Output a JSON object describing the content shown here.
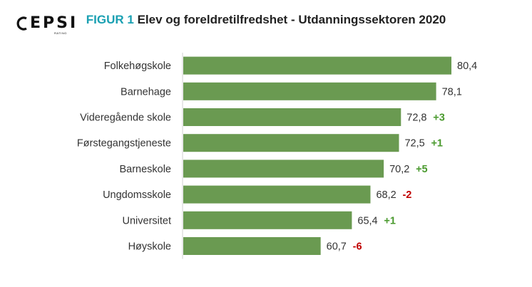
{
  "logo": {
    "text": "EPSI",
    "subtext": "RATING"
  },
  "title": {
    "figure_label": "FIGUR 1",
    "text": "Elev og foreldretilfredshet - Utdanningssektoren 2020"
  },
  "colors": {
    "bar": "#6a9a51",
    "positive": "#4a9a2e",
    "negative": "#c00000",
    "axis": "#d0d0d0",
    "title_accent": "#1aa0b2"
  },
  "chart_data": {
    "type": "bar",
    "orientation": "horizontal",
    "title": "Elev og foreldretilfredshet - Utdanningssektoren 2020",
    "categories": [
      "Folkehøgskole",
      "Barnehage",
      "Videregående skole",
      "Førstegangstjeneste",
      "Barneskole",
      "Ungdomsskole",
      "Universitet",
      "Høyskole"
    ],
    "values": [
      80.4,
      78.1,
      72.8,
      72.5,
      70.2,
      68.2,
      65.4,
      60.7
    ],
    "value_labels": [
      "80,4",
      "78,1",
      "72,8",
      "72,5",
      "70,2",
      "68,2",
      "65,4",
      "60,7"
    ],
    "changes": [
      "",
      "",
      "+3",
      "+1",
      "+5",
      "-2",
      "+1",
      "-6"
    ],
    "xlim": [
      40,
      82
    ],
    "grid": false,
    "legend": "none"
  }
}
